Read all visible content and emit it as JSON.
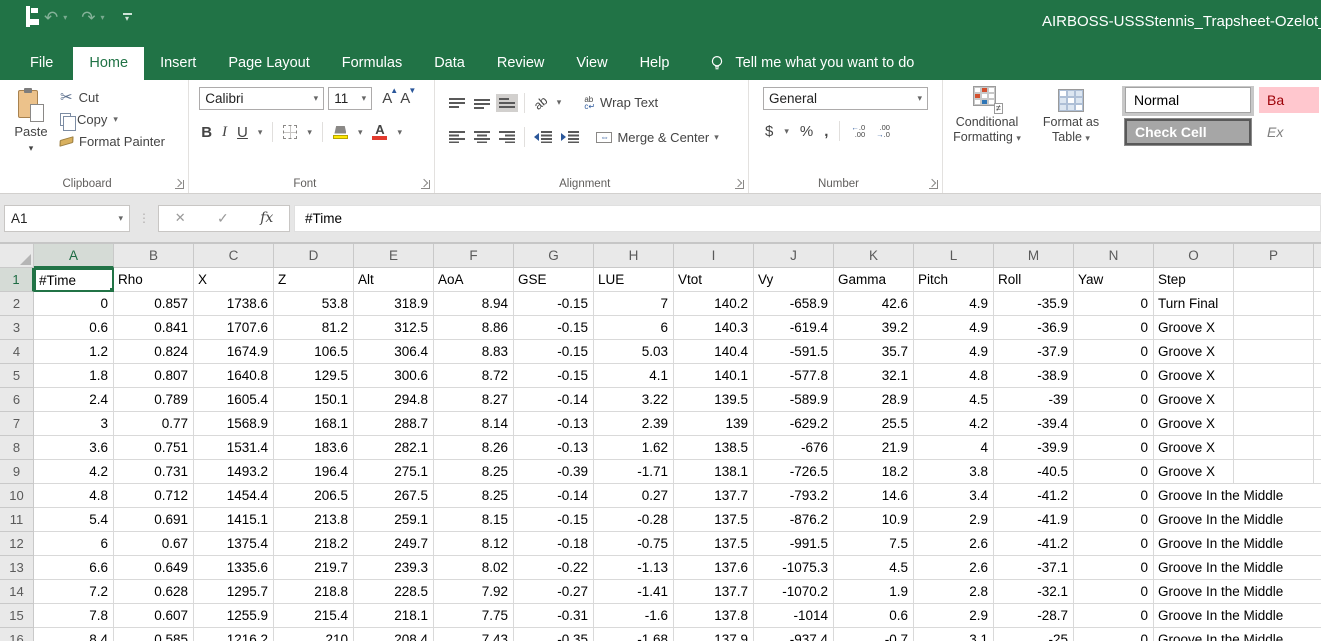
{
  "titlebar": {
    "title": "AIRBOSS-USSStennis_Trapsheet-Ozelot_FA"
  },
  "tabs": {
    "items": [
      "File",
      "Home",
      "Insert",
      "Page Layout",
      "Formulas",
      "Data",
      "Review",
      "View",
      "Help"
    ],
    "active": "Home",
    "tell_me": "Tell me what you want to do"
  },
  "ribbon": {
    "clipboard": {
      "label": "Clipboard",
      "paste": "Paste",
      "cut": "Cut",
      "copy": "Copy",
      "format_painter": "Format Painter"
    },
    "font": {
      "label": "Font",
      "family": "Calibri",
      "size": "11"
    },
    "alignment": {
      "label": "Alignment",
      "wrap_text": "Wrap Text",
      "merge_center": "Merge & Center"
    },
    "number": {
      "label": "Number",
      "format": "General"
    },
    "styles": {
      "conditional_formatting": "Conditional Formatting",
      "format_as_table": "Format as Table",
      "chip_normal": "Normal",
      "chip_bad": "Ba",
      "chip_check": "Check Cell",
      "chip_explanatory": "Ex"
    }
  },
  "formula_bar": {
    "name_box": "A1",
    "content": "#Time"
  },
  "sheet": {
    "col_letters": [
      "A",
      "B",
      "C",
      "D",
      "E",
      "F",
      "G",
      "H",
      "I",
      "J",
      "K",
      "L",
      "M",
      "N",
      "O",
      "P"
    ],
    "selected_cell": "A1",
    "rows": [
      {
        "n": "1",
        "cells": [
          "#Time",
          "Rho",
          "X",
          "Z",
          "Alt",
          "AoA",
          "GSE",
          "LUE",
          "Vtot",
          "Vy",
          "Gamma",
          "Pitch",
          "Roll",
          "Yaw",
          "Step",
          ""
        ]
      },
      {
        "n": "2",
        "cells": [
          "0",
          "0.857",
          "1738.6",
          "53.8",
          "318.9",
          "8.94",
          "-0.15",
          "7",
          "140.2",
          "-658.9",
          "42.6",
          "4.9",
          "-35.9",
          "0",
          "Turn Final",
          ""
        ]
      },
      {
        "n": "3",
        "cells": [
          "0.6",
          "0.841",
          "1707.6",
          "81.2",
          "312.5",
          "8.86",
          "-0.15",
          "6",
          "140.3",
          "-619.4",
          "39.2",
          "4.9",
          "-36.9",
          "0",
          "Groove X",
          ""
        ]
      },
      {
        "n": "4",
        "cells": [
          "1.2",
          "0.824",
          "1674.9",
          "106.5",
          "306.4",
          "8.83",
          "-0.15",
          "5.03",
          "140.4",
          "-591.5",
          "35.7",
          "4.9",
          "-37.9",
          "0",
          "Groove X",
          ""
        ]
      },
      {
        "n": "5",
        "cells": [
          "1.8",
          "0.807",
          "1640.8",
          "129.5",
          "300.6",
          "8.72",
          "-0.15",
          "4.1",
          "140.1",
          "-577.8",
          "32.1",
          "4.8",
          "-38.9",
          "0",
          "Groove X",
          ""
        ]
      },
      {
        "n": "6",
        "cells": [
          "2.4",
          "0.789",
          "1605.4",
          "150.1",
          "294.8",
          "8.27",
          "-0.14",
          "3.22",
          "139.5",
          "-589.9",
          "28.9",
          "4.5",
          "-39",
          "0",
          "Groove X",
          ""
        ]
      },
      {
        "n": "7",
        "cells": [
          "3",
          "0.77",
          "1568.9",
          "168.1",
          "288.7",
          "8.14",
          "-0.13",
          "2.39",
          "139",
          "-629.2",
          "25.5",
          "4.2",
          "-39.4",
          "0",
          "Groove X",
          ""
        ]
      },
      {
        "n": "8",
        "cells": [
          "3.6",
          "0.751",
          "1531.4",
          "183.6",
          "282.1",
          "8.26",
          "-0.13",
          "1.62",
          "138.5",
          "-676",
          "21.9",
          "4",
          "-39.9",
          "0",
          "Groove X",
          ""
        ]
      },
      {
        "n": "9",
        "cells": [
          "4.2",
          "0.731",
          "1493.2",
          "196.4",
          "275.1",
          "8.25",
          "-0.39",
          "-1.71",
          "138.1",
          "-726.5",
          "18.2",
          "3.8",
          "-40.5",
          "0",
          "Groove X",
          ""
        ]
      },
      {
        "n": "10",
        "cells": [
          "4.8",
          "0.712",
          "1454.4",
          "206.5",
          "267.5",
          "8.25",
          "-0.14",
          "0.27",
          "137.7",
          "-793.2",
          "14.6",
          "3.4",
          "-41.2",
          "0",
          "Groove In the Middle",
          ""
        ]
      },
      {
        "n": "11",
        "cells": [
          "5.4",
          "0.691",
          "1415.1",
          "213.8",
          "259.1",
          "8.15",
          "-0.15",
          "-0.28",
          "137.5",
          "-876.2",
          "10.9",
          "2.9",
          "-41.9",
          "0",
          "Groove In the Middle",
          ""
        ]
      },
      {
        "n": "12",
        "cells": [
          "6",
          "0.67",
          "1375.4",
          "218.2",
          "249.7",
          "8.12",
          "-0.18",
          "-0.75",
          "137.5",
          "-991.5",
          "7.5",
          "2.6",
          "-41.2",
          "0",
          "Groove In the Middle",
          ""
        ]
      },
      {
        "n": "13",
        "cells": [
          "6.6",
          "0.649",
          "1335.6",
          "219.7",
          "239.3",
          "8.02",
          "-0.22",
          "-1.13",
          "137.6",
          "-1075.3",
          "4.5",
          "2.6",
          "-37.1",
          "0",
          "Groove In the Middle",
          ""
        ]
      },
      {
        "n": "14",
        "cells": [
          "7.2",
          "0.628",
          "1295.7",
          "218.8",
          "228.5",
          "7.92",
          "-0.27",
          "-1.41",
          "137.7",
          "-1070.2",
          "1.9",
          "2.8",
          "-32.1",
          "0",
          "Groove In the Middle",
          ""
        ]
      },
      {
        "n": "15",
        "cells": [
          "7.8",
          "0.607",
          "1255.9",
          "215.4",
          "218.1",
          "7.75",
          "-0.31",
          "-1.6",
          "137.8",
          "-1014",
          "0.6",
          "2.9",
          "-28.7",
          "0",
          "Groove In the Middle",
          ""
        ]
      },
      {
        "n": "16",
        "cells": [
          "8.4",
          "0.585",
          "1216.2",
          "210",
          "208.4",
          "7.43",
          "-0.35",
          "-1.68",
          "137.9",
          "-937.4",
          "-0.7",
          "3.1",
          "-25",
          "0",
          "Groove In the Middle",
          ""
        ]
      }
    ]
  }
}
